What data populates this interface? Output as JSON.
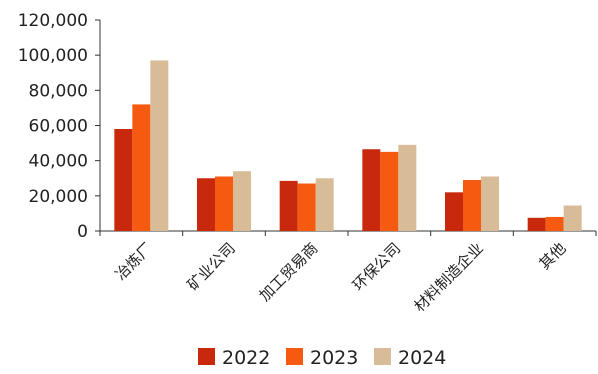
{
  "chart_data": {
    "type": "bar",
    "categories": [
      "冶炼厂",
      "矿业公司",
      "加工贸易商",
      "环保公司",
      "材料制造企业",
      "其他"
    ],
    "series": [
      {
        "name": "2022",
        "color": "#C8290D",
        "values": [
          58000,
          30000,
          28500,
          46500,
          22000,
          7500
        ]
      },
      {
        "name": "2023",
        "color": "#F55A10",
        "values": [
          72000,
          31000,
          27000,
          45000,
          29000,
          8000
        ]
      },
      {
        "name": "2024",
        "color": "#D8BC98",
        "values": [
          97000,
          34000,
          30000,
          49000,
          31000,
          14500
        ]
      }
    ],
    "yticks": [
      "0",
      "20,000",
      "40,000",
      "60,000",
      "80,000",
      "100,000",
      "120,000"
    ],
    "ylim": [
      0,
      120000
    ],
    "title": "",
    "xlabel": "",
    "ylabel": "",
    "legend_position": "bottom-center",
    "grid": false
  }
}
